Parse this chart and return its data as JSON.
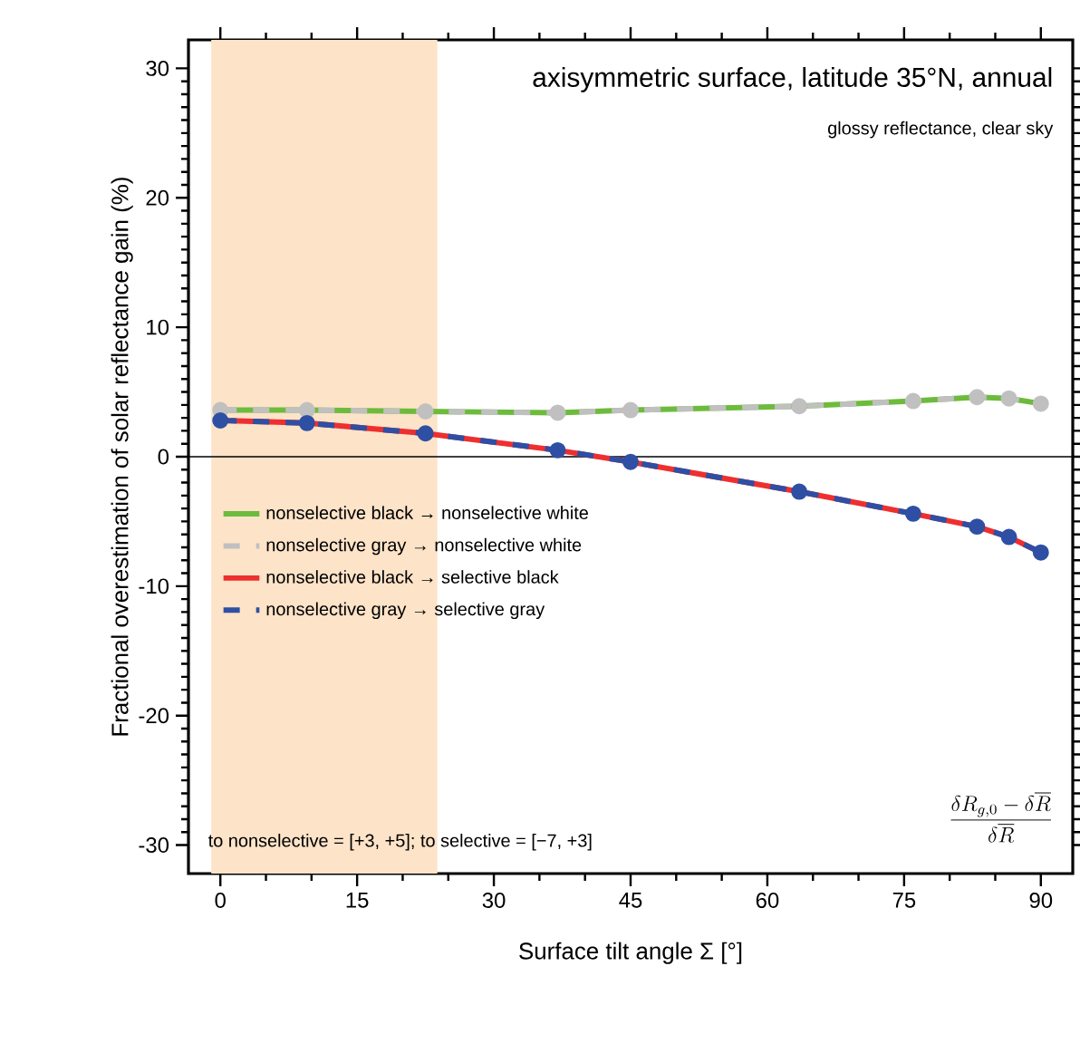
{
  "chart_data": {
    "type": "line",
    "title": "axisymmetric surface, latitude 35°N, annual",
    "subtitle": "glossy reflectance, clear sky",
    "xlabel": "Surface tilt angle Σ [°]",
    "ylabel": "Fractional overestimation of solar reflectance gain (%)",
    "x": [
      0,
      9.5,
      22.5,
      37,
      45,
      63.5,
      76,
      83,
      86.5,
      90
    ],
    "series": [
      {
        "name": "nonselective black → nonselective white",
        "color": "#6dbb3c",
        "line_style": "solid",
        "marker": "none",
        "values": [
          3.6,
          3.6,
          3.5,
          3.4,
          3.6,
          3.9,
          4.3,
          4.6,
          4.5,
          4.1
        ]
      },
      {
        "name": "nonselective gray → nonselective white",
        "color": "#c0c0c0",
        "line_style": "dashed",
        "marker": "circle",
        "values": [
          3.6,
          3.6,
          3.5,
          3.4,
          3.6,
          3.9,
          4.3,
          4.6,
          4.5,
          4.1
        ]
      },
      {
        "name": "nonselective black → selective black",
        "color": "#ee2f2f",
        "line_style": "solid",
        "marker": "none",
        "values": [
          2.8,
          2.6,
          1.8,
          0.5,
          -0.4,
          -2.7,
          -4.4,
          -5.4,
          -6.2,
          -7.4
        ]
      },
      {
        "name": "nonselective gray → selective gray",
        "color": "#2e4fa3",
        "line_style": "dashed",
        "marker": "circle",
        "values": [
          2.8,
          2.6,
          1.8,
          0.5,
          -0.4,
          -2.7,
          -4.4,
          -5.4,
          -6.2,
          -7.4
        ]
      }
    ],
    "xlim": [
      -3.5,
      93.5
    ],
    "ylim": [
      -32.2,
      32.2
    ],
    "xticks": [
      0,
      15,
      30,
      45,
      60,
      75,
      90
    ],
    "yticks": [
      -30,
      -20,
      -10,
      0,
      10,
      20,
      30
    ],
    "ref_lines": [
      {
        "axis": "y",
        "value": 0,
        "color": "#000000"
      }
    ],
    "bands": [
      {
        "axis": "x",
        "from": -1,
        "to": 23.8,
        "color": "#fde3c8"
      }
    ],
    "legend": "left",
    "annotations": [
      "to nonselective = [+3, +5]; to selective = [−7, +3]",
      "\\frac{\\delta R_{g,0}-\\delta\\overline{R}}{\\delta\\overline{R}}"
    ]
  }
}
